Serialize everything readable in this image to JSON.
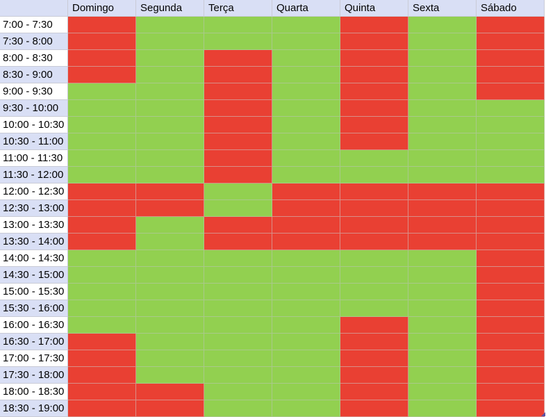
{
  "days": [
    "Domingo",
    "Segunda",
    "Terça",
    "Quarta",
    "Quinta",
    "Sexta",
    "Sábado"
  ],
  "times": [
    "7:00 - 7:30",
    "7:30 - 8:00",
    "8:00 - 8:30",
    "8:30 - 9:00",
    "9:00 - 9:30",
    "9:30 - 10:00",
    "10:00 - 10:30",
    "10:30 - 11:00",
    "11:00 - 11:30",
    "11:30 - 12:00",
    "12:00 - 12:30",
    "12:30 - 13:00",
    "13:00 - 13:30",
    "13:30 - 14:00",
    "14:00 - 14:30",
    "14:30 - 15:00",
    "15:00 - 15:30",
    "15:30 - 16:00",
    "16:00 - 16:30",
    "16:30 - 17:00",
    "17:00 - 17:30",
    "17:30 - 18:00",
    "18:00 - 18:30",
    "18:30 - 19:00"
  ],
  "row_label_style": [
    "white",
    "blue",
    "white",
    "blue",
    "white",
    "blue",
    "white",
    "blue",
    "white",
    "blue",
    "white",
    "blue",
    "white",
    "blue",
    "white",
    "blue",
    "white",
    "blue",
    "white",
    "blue",
    "white",
    "blue",
    "white",
    "blue"
  ],
  "schedule": [
    [
      "busy",
      "free",
      "free",
      "free",
      "busy",
      "free",
      "busy"
    ],
    [
      "busy",
      "free",
      "free",
      "free",
      "busy",
      "free",
      "busy"
    ],
    [
      "busy",
      "free",
      "busy",
      "free",
      "busy",
      "free",
      "busy"
    ],
    [
      "busy",
      "free",
      "busy",
      "free",
      "busy",
      "free",
      "busy"
    ],
    [
      "free",
      "free",
      "busy",
      "free",
      "busy",
      "free",
      "busy"
    ],
    [
      "free",
      "free",
      "busy",
      "free",
      "busy",
      "free",
      "free"
    ],
    [
      "free",
      "free",
      "busy",
      "free",
      "busy",
      "free",
      "free"
    ],
    [
      "free",
      "free",
      "busy",
      "free",
      "busy",
      "free",
      "free"
    ],
    [
      "free",
      "free",
      "busy",
      "free",
      "free",
      "free",
      "free"
    ],
    [
      "free",
      "free",
      "busy",
      "free",
      "free",
      "free",
      "free"
    ],
    [
      "busy",
      "busy",
      "free",
      "busy",
      "busy",
      "busy",
      "busy"
    ],
    [
      "busy",
      "busy",
      "free",
      "busy",
      "busy",
      "busy",
      "busy"
    ],
    [
      "busy",
      "free",
      "busy",
      "busy",
      "busy",
      "busy",
      "busy"
    ],
    [
      "busy",
      "free",
      "busy",
      "busy",
      "busy",
      "busy",
      "busy"
    ],
    [
      "free",
      "free",
      "free",
      "free",
      "free",
      "free",
      "busy"
    ],
    [
      "free",
      "free",
      "free",
      "free",
      "free",
      "free",
      "busy"
    ],
    [
      "free",
      "free",
      "free",
      "free",
      "free",
      "free",
      "busy"
    ],
    [
      "free",
      "free",
      "free",
      "free",
      "free",
      "free",
      "busy"
    ],
    [
      "free",
      "free",
      "free",
      "free",
      "busy",
      "free",
      "busy"
    ],
    [
      "busy",
      "free",
      "free",
      "free",
      "busy",
      "free",
      "busy"
    ],
    [
      "busy",
      "free",
      "free",
      "free",
      "busy",
      "free",
      "busy"
    ],
    [
      "busy",
      "free",
      "free",
      "free",
      "busy",
      "free",
      "busy"
    ],
    [
      "busy",
      "busy",
      "free",
      "free",
      "busy",
      "free",
      "busy"
    ],
    [
      "busy",
      "busy",
      "free",
      "free",
      "busy",
      "free",
      "busy"
    ]
  ],
  "colors": {
    "busy": "#e94033",
    "free": "#92d050",
    "header_bg": "#d9dff5"
  }
}
